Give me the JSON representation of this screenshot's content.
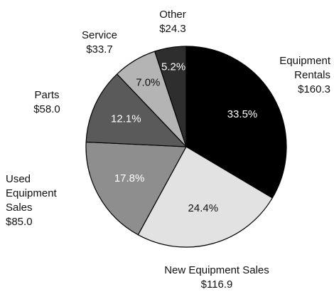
{
  "chart_data": {
    "type": "pie",
    "title": "",
    "categories": [
      "Equipment Rentals",
      "New Equipment Sales",
      "Used Equipment Sales",
      "Parts",
      "Service",
      "Other"
    ],
    "values": [
      160.3,
      116.9,
      85.0,
      58.0,
      33.7,
      24.3
    ],
    "value_labels": [
      "$160.3",
      "$116.9",
      "$85.0",
      "$58.0",
      "$33.7",
      "$24.3"
    ],
    "percentages": [
      "33.5%",
      "24.4%",
      "17.8%",
      "12.1%",
      "7.0%",
      "5.2%"
    ],
    "start_angle_deg": 0,
    "direction": "clockwise",
    "colors": [
      "#000000",
      "#e2e2e2",
      "#8e8e8e",
      "#5a5a5a",
      "#b4b4b4",
      "#2e2e2e"
    ],
    "pct_label_colors": [
      "#ffffff",
      "#111111",
      "#ffffff",
      "#ffffff",
      "#111111",
      "#ffffff"
    ],
    "legend": "none"
  }
}
